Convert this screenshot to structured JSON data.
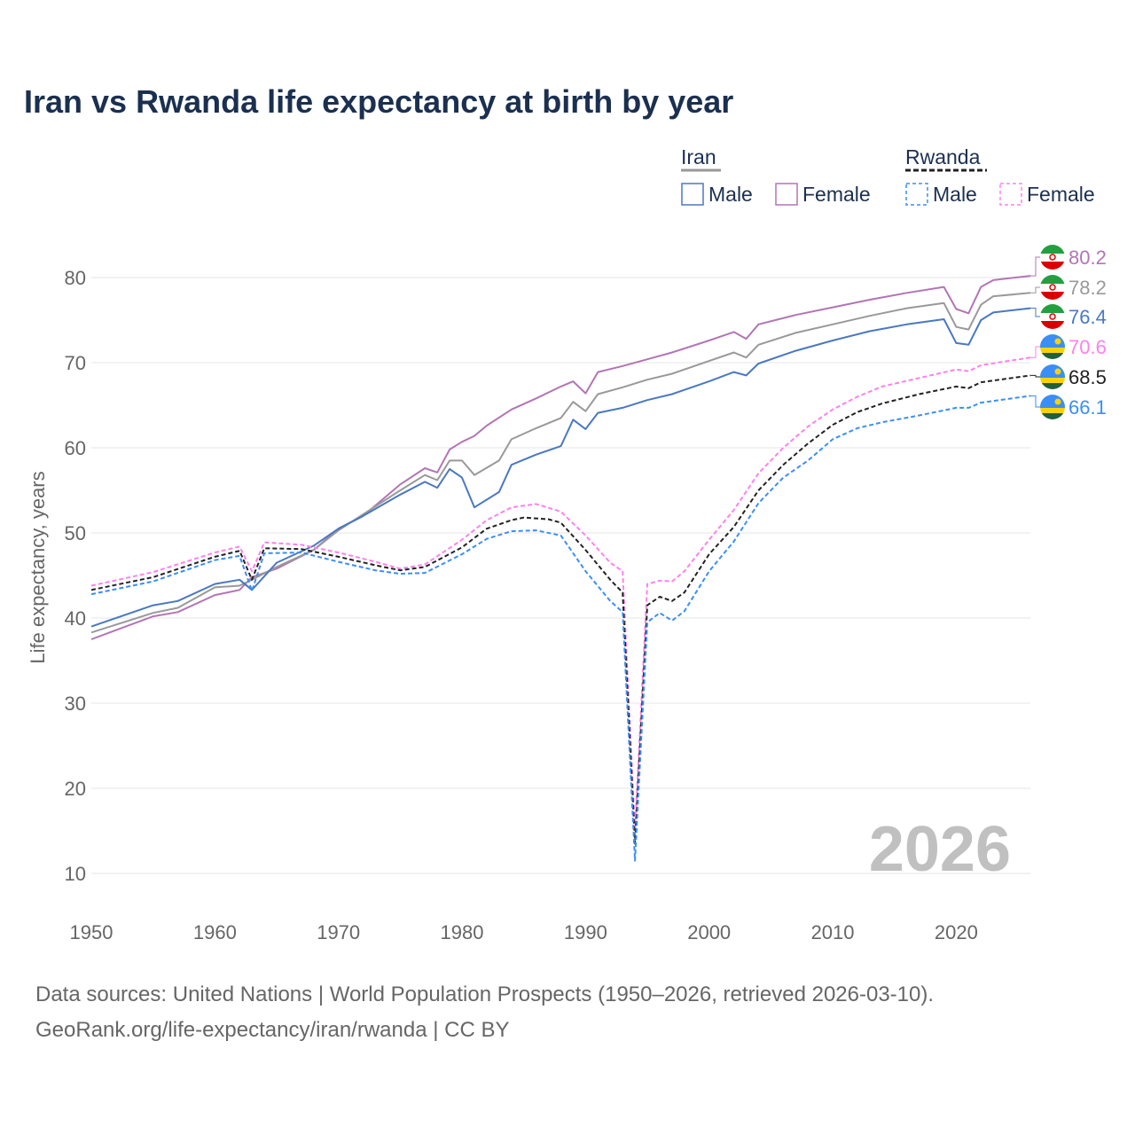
{
  "chart_data": {
    "type": "line",
    "title": "Iran vs Rwanda life expectancy at birth by year",
    "xlabel": "",
    "ylabel": "Life expectancy, years",
    "xlim": [
      1950,
      2026
    ],
    "ylim": [
      10,
      85
    ],
    "x_ticks": [
      1950,
      1960,
      1970,
      1980,
      1990,
      2000,
      2010,
      2020
    ],
    "y_ticks": [
      10,
      20,
      30,
      40,
      50,
      60,
      70,
      80
    ],
    "grid": true,
    "watermark_year": "2026",
    "legend": {
      "placement": "top-right",
      "groups": [
        {
          "label": "Iran",
          "line_color": "#999999",
          "dashed": false,
          "items": [
            {
              "label": "Male",
              "color": "#4a78c2"
            },
            {
              "label": "Female",
              "color": "#b275b5"
            }
          ]
        },
        {
          "label": "Rwanda",
          "line_color": "#222222",
          "dashed": true,
          "items": [
            {
              "label": "Male",
              "color": "#3a8ef5"
            },
            {
              "label": "Female",
              "color": "#ff80ee"
            }
          ]
        }
      ]
    },
    "series": [
      {
        "name": "Iran Female",
        "country": "iran",
        "color": "#b275b5",
        "dashed": false,
        "end_label": "80.2",
        "points": [
          [
            1950,
            37.5
          ],
          [
            1955,
            40.2
          ],
          [
            1957,
            40.7
          ],
          [
            1960,
            42.7
          ],
          [
            1962,
            43.3
          ],
          [
            1963,
            44.8
          ],
          [
            1965,
            45.8
          ],
          [
            1968,
            48
          ],
          [
            1970,
            50.5
          ],
          [
            1972,
            52
          ],
          [
            1975,
            55.7
          ],
          [
            1977,
            57.6
          ],
          [
            1978,
            57.1
          ],
          [
            1979,
            59.8
          ],
          [
            1980,
            60.7
          ],
          [
            1981,
            61.4
          ],
          [
            1982,
            62.6
          ],
          [
            1984,
            64.5
          ],
          [
            1986,
            65.8
          ],
          [
            1988,
            67.2
          ],
          [
            1989,
            67.8
          ],
          [
            1990,
            66.4
          ],
          [
            1991,
            68.9
          ],
          [
            1993,
            69.6
          ],
          [
            1995,
            70.4
          ],
          [
            1997,
            71.2
          ],
          [
            2000,
            72.6
          ],
          [
            2002,
            73.6
          ],
          [
            2003,
            72.8
          ],
          [
            2004,
            74.5
          ],
          [
            2007,
            75.6
          ],
          [
            2010,
            76.5
          ],
          [
            2013,
            77.4
          ],
          [
            2016,
            78.2
          ],
          [
            2019,
            78.9
          ],
          [
            2020,
            76.3
          ],
          [
            2021,
            75.8
          ],
          [
            2022,
            78.9
          ],
          [
            2023,
            79.7
          ],
          [
            2026,
            80.2
          ]
        ]
      },
      {
        "name": "Iran",
        "country": "iran",
        "color": "#999999",
        "dashed": false,
        "end_label": "78.2",
        "points": [
          [
            1950,
            38.3
          ],
          [
            1955,
            40.6
          ],
          [
            1957,
            41.2
          ],
          [
            1960,
            43.6
          ],
          [
            1962,
            43.8
          ],
          [
            1963,
            44.5
          ],
          [
            1965,
            46
          ],
          [
            1968,
            48
          ],
          [
            1970,
            50.3
          ],
          [
            1972,
            52.2
          ],
          [
            1975,
            55
          ],
          [
            1977,
            56.8
          ],
          [
            1978,
            56.2
          ],
          [
            1979,
            58.5
          ],
          [
            1980,
            58.5
          ],
          [
            1981,
            56.8
          ],
          [
            1983,
            58.5
          ],
          [
            1984,
            61
          ],
          [
            1986,
            62.3
          ],
          [
            1988,
            63.5
          ],
          [
            1989,
            65.4
          ],
          [
            1990,
            64.3
          ],
          [
            1991,
            66.3
          ],
          [
            1993,
            67.1
          ],
          [
            1995,
            68
          ],
          [
            1997,
            68.7
          ],
          [
            2000,
            70.2
          ],
          [
            2002,
            71.2
          ],
          [
            2003,
            70.6
          ],
          [
            2004,
            72.1
          ],
          [
            2007,
            73.5
          ],
          [
            2010,
            74.5
          ],
          [
            2013,
            75.5
          ],
          [
            2016,
            76.4
          ],
          [
            2019,
            77
          ],
          [
            2020,
            74.2
          ],
          [
            2021,
            73.9
          ],
          [
            2022,
            76.8
          ],
          [
            2023,
            77.8
          ],
          [
            2026,
            78.2
          ]
        ]
      },
      {
        "name": "Iran Male",
        "country": "iran",
        "color": "#4a78c2",
        "dashed": false,
        "end_label": "76.4",
        "points": [
          [
            1950,
            39
          ],
          [
            1955,
            41.5
          ],
          [
            1957,
            42
          ],
          [
            1960,
            44
          ],
          [
            1962,
            44.5
          ],
          [
            1963,
            43.3
          ],
          [
            1965,
            46.5
          ],
          [
            1968,
            48.5
          ],
          [
            1970,
            50.5
          ],
          [
            1972,
            52
          ],
          [
            1975,
            54.5
          ],
          [
            1977,
            56
          ],
          [
            1978,
            55.3
          ],
          [
            1979,
            57.5
          ],
          [
            1980,
            56.5
          ],
          [
            1981,
            53
          ],
          [
            1983,
            54.8
          ],
          [
            1984,
            58
          ],
          [
            1986,
            59.2
          ],
          [
            1988,
            60.2
          ],
          [
            1989,
            63.3
          ],
          [
            1990,
            62.2
          ],
          [
            1991,
            64.1
          ],
          [
            1993,
            64.7
          ],
          [
            1995,
            65.6
          ],
          [
            1997,
            66.3
          ],
          [
            2000,
            67.8
          ],
          [
            2002,
            68.9
          ],
          [
            2003,
            68.5
          ],
          [
            2004,
            69.9
          ],
          [
            2007,
            71.4
          ],
          [
            2010,
            72.6
          ],
          [
            2013,
            73.7
          ],
          [
            2016,
            74.5
          ],
          [
            2019,
            75.1
          ],
          [
            2020,
            72.3
          ],
          [
            2021,
            72.1
          ],
          [
            2022,
            75
          ],
          [
            2023,
            75.9
          ],
          [
            2026,
            76.4
          ]
        ]
      },
      {
        "name": "Rwanda Female",
        "country": "rwanda",
        "color": "#ff80ee",
        "dashed": true,
        "end_label": "70.6",
        "points": [
          [
            1950,
            43.8
          ],
          [
            1955,
            45.4
          ],
          [
            1960,
            47.7
          ],
          [
            1962,
            48.4
          ],
          [
            1963,
            45.5
          ],
          [
            1964,
            48.9
          ],
          [
            1967,
            48.6
          ],
          [
            1970,
            47.7
          ],
          [
            1973,
            46.6
          ],
          [
            1975,
            45.8
          ],
          [
            1977,
            46.3
          ],
          [
            1980,
            49.2
          ],
          [
            1982,
            51.5
          ],
          [
            1984,
            53
          ],
          [
            1986,
            53.4
          ],
          [
            1988,
            52.5
          ],
          [
            1990,
            49.7
          ],
          [
            1992,
            46.5
          ],
          [
            1993,
            45.5
          ],
          [
            1994,
            15
          ],
          [
            1995,
            44
          ],
          [
            1996,
            44.4
          ],
          [
            1997,
            44.3
          ],
          [
            1998,
            45.5
          ],
          [
            2000,
            49.2
          ],
          [
            2002,
            52.7
          ],
          [
            2004,
            57
          ],
          [
            2006,
            60
          ],
          [
            2008,
            62.5
          ],
          [
            2010,
            64.5
          ],
          [
            2012,
            66
          ],
          [
            2014,
            67.2
          ],
          [
            2017,
            68.2
          ],
          [
            2020,
            69.2
          ],
          [
            2021,
            69
          ],
          [
            2022,
            69.7
          ],
          [
            2026,
            70.6
          ]
        ]
      },
      {
        "name": "Rwanda",
        "country": "rwanda",
        "color": "#222222",
        "dashed": true,
        "end_label": "68.5",
        "points": [
          [
            1950,
            43.3
          ],
          [
            1955,
            44.8
          ],
          [
            1960,
            47.2
          ],
          [
            1962,
            47.9
          ],
          [
            1963,
            44.5
          ],
          [
            1964,
            48.2
          ],
          [
            1967,
            48.1
          ],
          [
            1970,
            47.2
          ],
          [
            1973,
            46.2
          ],
          [
            1975,
            45.6
          ],
          [
            1977,
            46
          ],
          [
            1980,
            48.3
          ],
          [
            1982,
            50.5
          ],
          [
            1984,
            51.5
          ],
          [
            1985,
            51.8
          ],
          [
            1987,
            51.6
          ],
          [
            1988,
            51.2
          ],
          [
            1990,
            48
          ],
          [
            1992,
            44.5
          ],
          [
            1993,
            43
          ],
          [
            1994,
            13.5
          ],
          [
            1995,
            41.5
          ],
          [
            1996,
            42.5
          ],
          [
            1997,
            42
          ],
          [
            1998,
            43
          ],
          [
            2000,
            47.5
          ],
          [
            2002,
            50.7
          ],
          [
            2004,
            55
          ],
          [
            2006,
            58
          ],
          [
            2008,
            60.5
          ],
          [
            2010,
            62.7
          ],
          [
            2012,
            64.2
          ],
          [
            2014,
            65.2
          ],
          [
            2017,
            66.3
          ],
          [
            2020,
            67.2
          ],
          [
            2021,
            67
          ],
          [
            2022,
            67.7
          ],
          [
            2026,
            68.5
          ]
        ]
      },
      {
        "name": "Rwanda Male",
        "country": "rwanda",
        "color": "#3a8ef5",
        "dashed": true,
        "end_label": "66.1",
        "points": [
          [
            1950,
            42.8
          ],
          [
            1955,
            44.3
          ],
          [
            1960,
            46.8
          ],
          [
            1962,
            47.3
          ],
          [
            1963,
            43.2
          ],
          [
            1964,
            47.6
          ],
          [
            1967,
            47.7
          ],
          [
            1970,
            46.6
          ],
          [
            1973,
            45.6
          ],
          [
            1975,
            45.2
          ],
          [
            1977,
            45.3
          ],
          [
            1980,
            47.5
          ],
          [
            1982,
            49.3
          ],
          [
            1984,
            50.2
          ],
          [
            1986,
            50.3
          ],
          [
            1988,
            49.7
          ],
          [
            1990,
            45.5
          ],
          [
            1992,
            42
          ],
          [
            1993,
            40.7
          ],
          [
            1994,
            11.5
          ],
          [
            1995,
            39.5
          ],
          [
            1996,
            40.6
          ],
          [
            1997,
            39.7
          ],
          [
            1998,
            40.8
          ],
          [
            2000,
            45.5
          ],
          [
            2002,
            49
          ],
          [
            2004,
            53.5
          ],
          [
            2006,
            56.5
          ],
          [
            2008,
            58.5
          ],
          [
            2010,
            61
          ],
          [
            2012,
            62.3
          ],
          [
            2014,
            63
          ],
          [
            2017,
            63.8
          ],
          [
            2020,
            64.7
          ],
          [
            2021,
            64.7
          ],
          [
            2022,
            65.3
          ],
          [
            2026,
            66.1
          ]
        ]
      }
    ]
  },
  "footer": {
    "line1": "Data sources: United Nations | World Population Prospects (1950–2026, retrieved 2026-03-10).",
    "line2": "GeoRank.org/life-expectancy/iran/rwanda | CC BY"
  }
}
